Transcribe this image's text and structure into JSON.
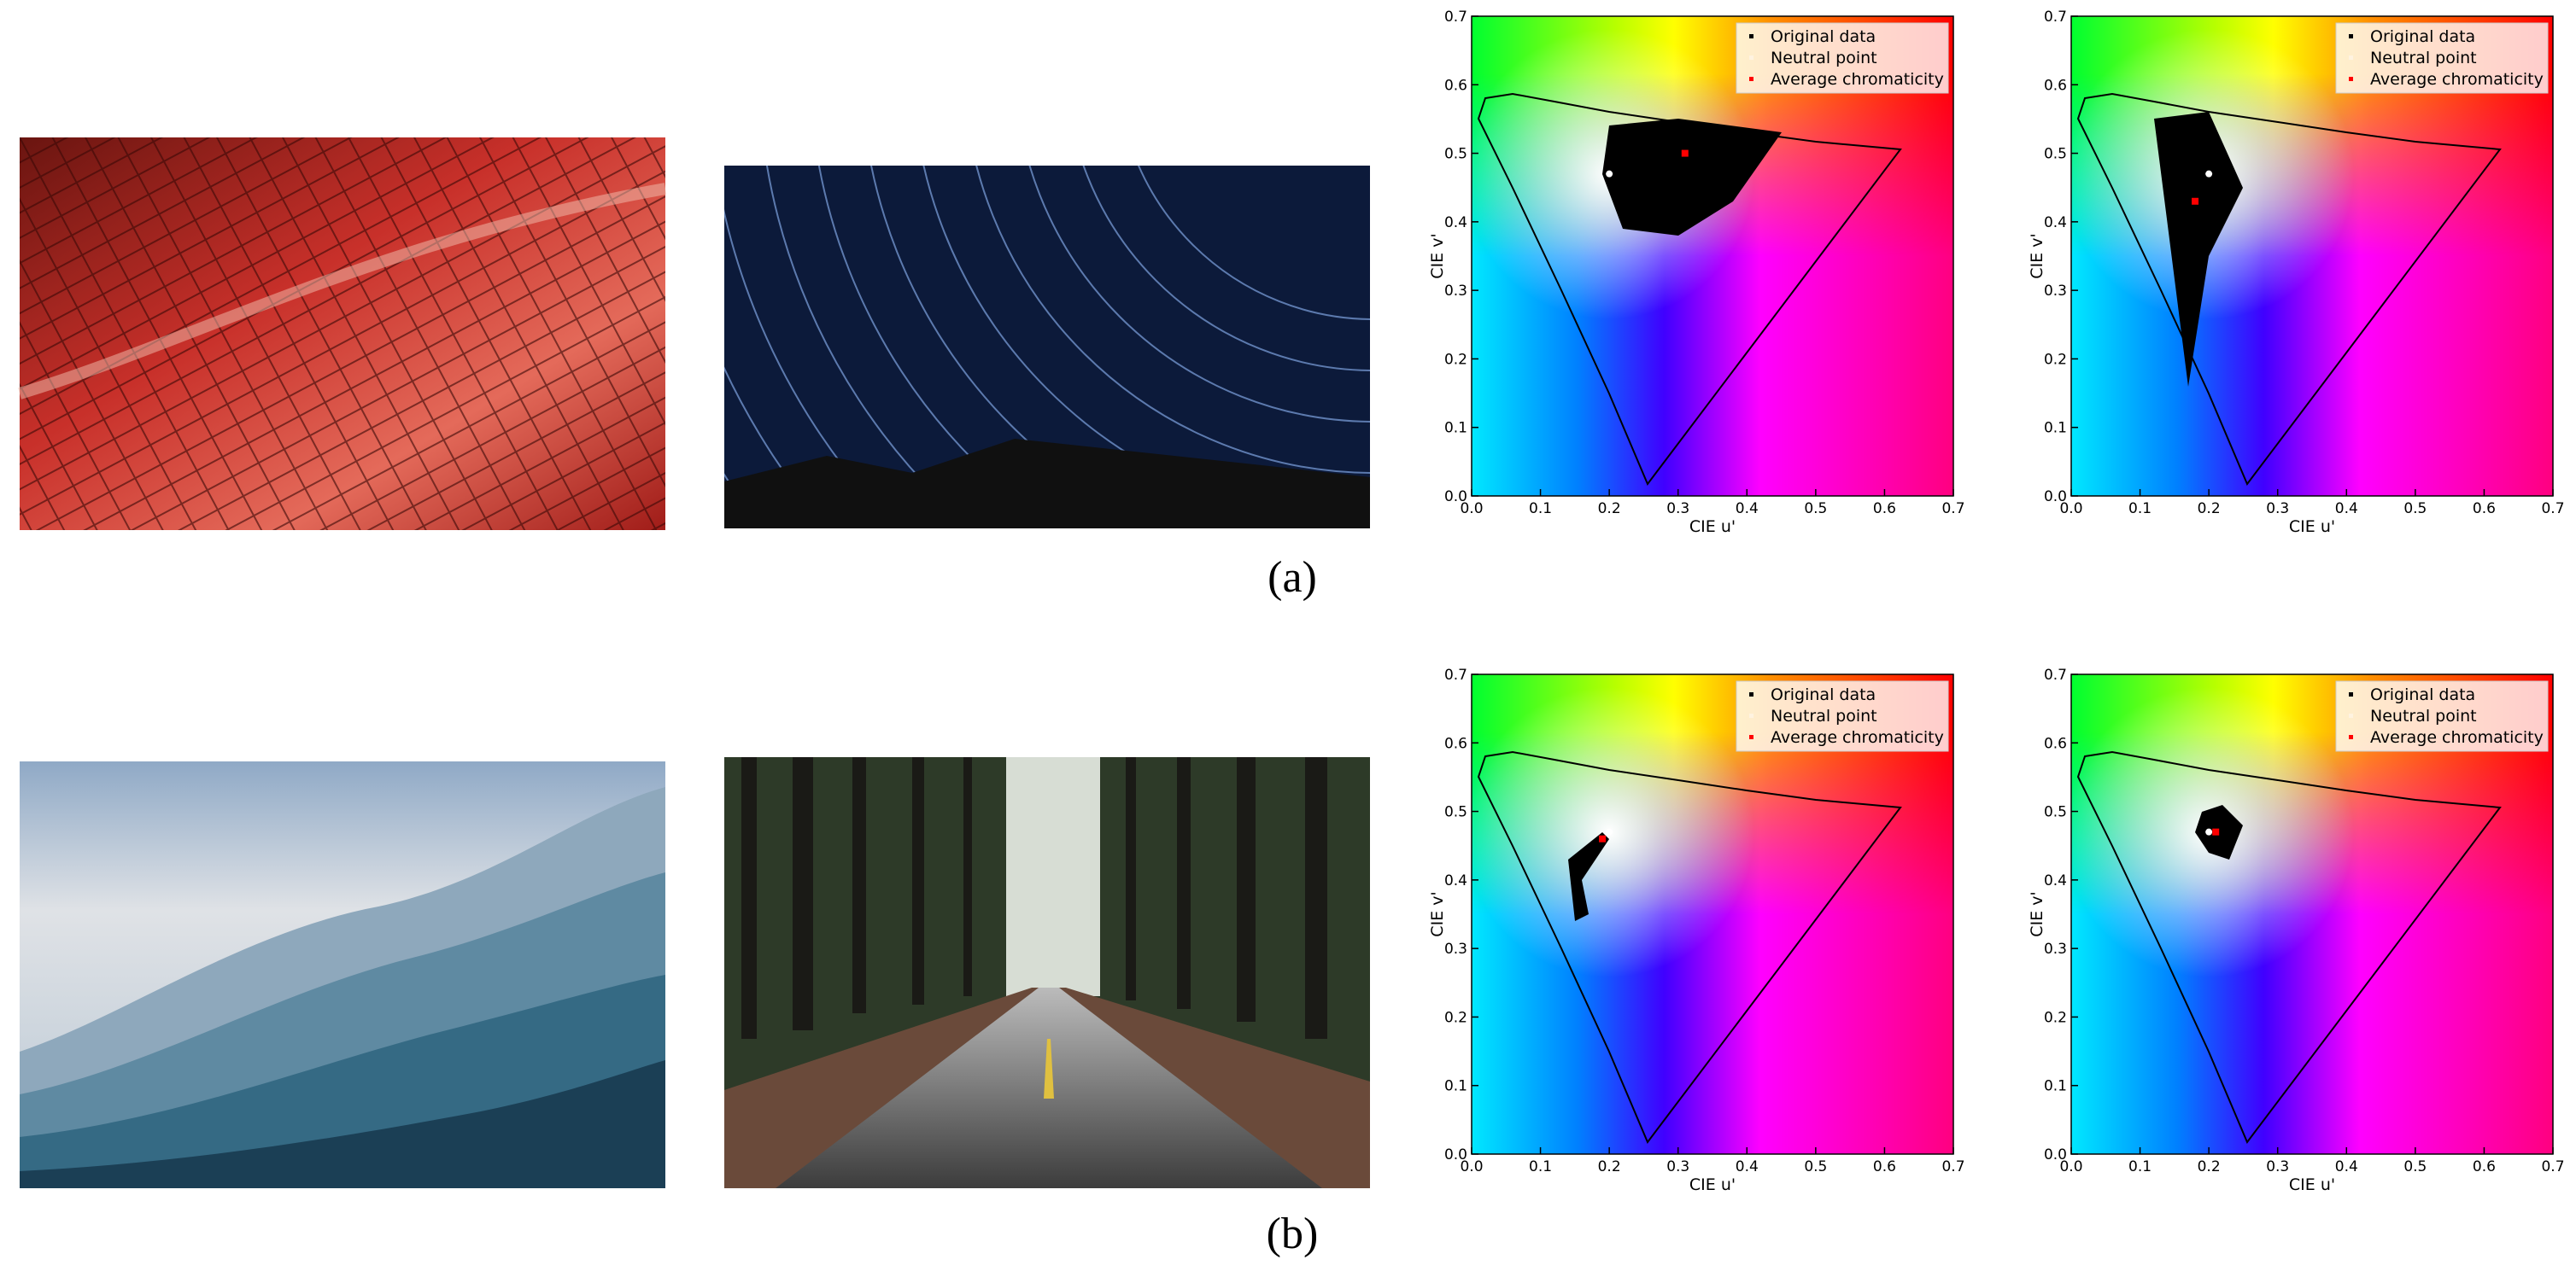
{
  "panel_labels": [
    "(a)",
    "(b)"
  ],
  "axes": {
    "xlabel": "CIE u'",
    "ylabel": "CIE v'",
    "xlim": [
      0,
      0.7
    ],
    "ylim": [
      0,
      0.7
    ],
    "xticks": [
      {
        "value": 0,
        "label": "0.0"
      },
      0.1,
      0.2,
      0.3,
      0.4,
      0.5,
      0.6,
      0.7
    ],
    "yticks": [
      {
        "value": 0,
        "label": "0.0"
      },
      0.1,
      0.2,
      0.3,
      0.4,
      0.5,
      0.6,
      0.7
    ],
    "legend": [
      "Original data",
      "Neutral point",
      "Average chromaticity"
    ]
  },
  "plots": [
    {
      "neutral_point": [
        0.2,
        0.47
      ],
      "average_chromaticity": [
        0.31,
        0.5
      ]
    },
    {
      "neutral_point": [
        0.2,
        0.47
      ],
      "average_chromaticity": [
        0.18,
        0.43
      ]
    },
    {
      "neutral_point": [
        0.2,
        0.47
      ],
      "average_chromaticity": [
        0.19,
        0.46
      ]
    },
    {
      "neutral_point": [
        0.2,
        0.47
      ],
      "average_chromaticity": [
        0.21,
        0.47
      ]
    }
  ]
}
